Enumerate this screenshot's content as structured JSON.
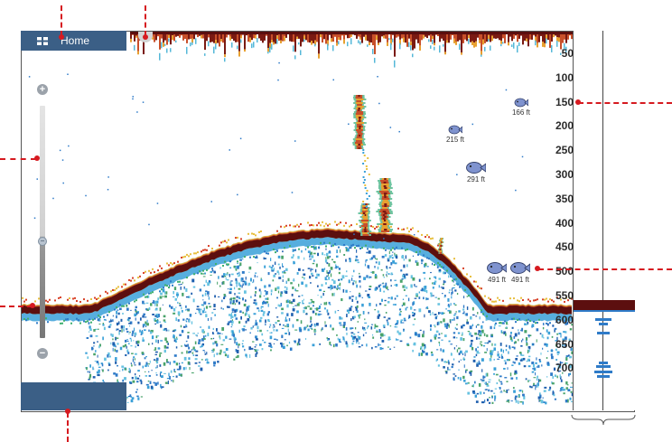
{
  "header": {
    "home_label": "Home"
  },
  "icons": {
    "home": "grid-icon",
    "zoom_in": "plus-icon",
    "zoom_out": "minus-icon",
    "fish": "fish-icon"
  },
  "zoom": {
    "plus": "+",
    "minus": "−"
  },
  "depth_scale": {
    "labels": [
      "50",
      "100",
      "150",
      "200",
      "250",
      "300",
      "350",
      "400",
      "450",
      "500",
      "550",
      "600",
      "650",
      "700"
    ]
  },
  "fish_marks": [
    {
      "label": "166 ft",
      "size": "small"
    },
    {
      "label": "215 ft",
      "size": "small"
    },
    {
      "label": "291 ft",
      "size": "large"
    },
    {
      "label": "491 ft",
      "size": "large"
    },
    {
      "label": "491 ft",
      "size": "large"
    }
  ],
  "colors": {
    "panel": "#3b5f86",
    "seabed": "#5c0f0f",
    "callout": "#d61a20",
    "fish": "#7f93cf"
  }
}
